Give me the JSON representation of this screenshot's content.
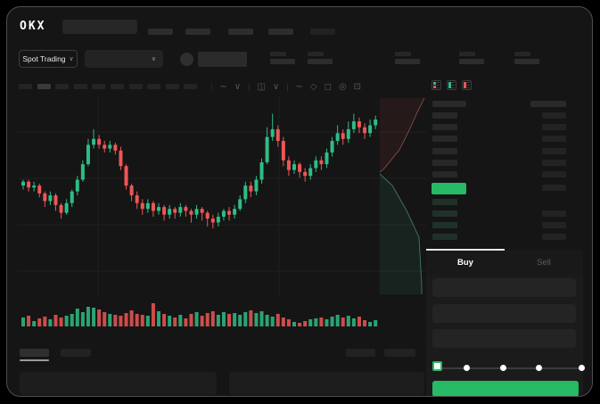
{
  "colors": {
    "candle_green": "#2ebd85",
    "candle_red": "#ef5656",
    "accent_green": "#26ba64",
    "bid_row_tint": "#20312a",
    "ask_row_gray": "#282828",
    "grid": "#1f1f1f"
  },
  "topbar": {
    "logo": "OKX"
  },
  "market_bar": {
    "pair_selector": "Spot Trading",
    "chevron": "∨"
  },
  "chart_toolbar": {
    "timeframe_slots": 10,
    "active_slot": 1,
    "icons": [
      {
        "name": "separator",
        "glyph": "|"
      },
      {
        "name": "indicators-icon",
        "glyph": "∼"
      },
      {
        "name": "chevron-down-icon",
        "glyph": "∨"
      },
      {
        "name": "separator",
        "glyph": "|"
      },
      {
        "name": "chart-type-icon",
        "glyph": "◫"
      },
      {
        "name": "chevron-down-icon",
        "glyph": "∨"
      },
      {
        "name": "separator",
        "glyph": "|"
      },
      {
        "name": "line-tools-icon",
        "glyph": "∼"
      },
      {
        "name": "compare-icon",
        "glyph": "◇"
      },
      {
        "name": "camera-icon",
        "glyph": "◻"
      },
      {
        "name": "settings-icon",
        "glyph": "◎"
      },
      {
        "name": "fullscreen-icon",
        "glyph": "⊡"
      }
    ]
  },
  "chart_data": {
    "type": "candlestick+volume",
    "title": "",
    "note": "values in relative price scale 0-100 read from pixels; candle = [open, close, low, high]",
    "grid": true,
    "candles": [
      [
        55,
        57,
        53,
        58
      ],
      [
        57,
        54,
        52,
        58
      ],
      [
        54,
        55,
        52,
        57
      ],
      [
        55,
        51,
        49,
        56
      ],
      [
        51,
        47,
        44,
        52
      ],
      [
        47,
        50,
        45,
        52
      ],
      [
        50,
        45,
        42,
        51
      ],
      [
        45,
        41,
        38,
        46
      ],
      [
        41,
        46,
        40,
        48
      ],
      [
        46,
        52,
        44,
        53
      ],
      [
        52,
        58,
        50,
        60
      ],
      [
        58,
        66,
        57,
        68
      ],
      [
        66,
        76,
        65,
        79
      ],
      [
        76,
        79,
        74,
        84
      ],
      [
        79,
        76,
        74,
        81
      ],
      [
        76,
        74,
        72,
        78
      ],
      [
        74,
        76,
        72,
        78
      ],
      [
        76,
        73,
        71,
        77
      ],
      [
        73,
        65,
        63,
        75
      ],
      [
        65,
        55,
        53,
        66
      ],
      [
        55,
        50,
        47,
        56
      ],
      [
        50,
        46,
        43,
        52
      ],
      [
        46,
        43,
        40,
        48
      ],
      [
        43,
        46,
        41,
        48
      ],
      [
        46,
        42,
        39,
        47
      ],
      [
        42,
        44,
        40,
        46
      ],
      [
        44,
        40,
        37,
        45
      ],
      [
        40,
        43,
        38,
        45
      ],
      [
        43,
        41,
        38,
        44
      ],
      [
        41,
        44,
        39,
        46
      ],
      [
        44,
        42,
        39,
        45
      ],
      [
        42,
        40,
        36,
        43
      ],
      [
        40,
        43,
        38,
        45
      ],
      [
        43,
        41,
        37,
        44
      ],
      [
        41,
        38,
        34,
        42
      ],
      [
        38,
        36,
        33,
        40
      ],
      [
        36,
        39,
        34,
        41
      ],
      [
        39,
        42,
        37,
        43
      ],
      [
        42,
        40,
        37,
        44
      ],
      [
        40,
        43,
        38,
        45
      ],
      [
        43,
        48,
        42,
        50
      ],
      [
        48,
        55,
        46,
        57
      ],
      [
        55,
        52,
        49,
        57
      ],
      [
        52,
        58,
        50,
        60
      ],
      [
        58,
        67,
        56,
        69
      ],
      [
        67,
        80,
        66,
        85
      ],
      [
        80,
        84,
        78,
        92
      ],
      [
        84,
        78,
        75,
        86
      ],
      [
        78,
        68,
        65,
        80
      ],
      [
        68,
        63,
        60,
        70
      ],
      [
        63,
        66,
        61,
        68
      ],
      [
        66,
        62,
        59,
        67
      ],
      [
        62,
        60,
        57,
        64
      ],
      [
        60,
        64,
        58,
        66
      ],
      [
        64,
        68,
        62,
        70
      ],
      [
        68,
        66,
        63,
        70
      ],
      [
        66,
        72,
        64,
        74
      ],
      [
        72,
        78,
        70,
        80
      ],
      [
        78,
        82,
        76,
        86
      ],
      [
        82,
        79,
        76,
        84
      ],
      [
        79,
        84,
        77,
        88
      ],
      [
        84,
        88,
        82,
        92
      ],
      [
        88,
        85,
        82,
        90
      ],
      [
        85,
        82,
        79,
        87
      ],
      [
        82,
        86,
        80,
        89
      ],
      [
        86,
        89,
        84,
        91
      ]
    ],
    "volumes": [
      10,
      12,
      6,
      9,
      11,
      8,
      13,
      10,
      12,
      14,
      20,
      16,
      22,
      21,
      19,
      16,
      14,
      13,
      12,
      15,
      18,
      14,
      13,
      12,
      26,
      17,
      14,
      12,
      10,
      13,
      9,
      14,
      16,
      12,
      15,
      17,
      13,
      16,
      14,
      15,
      13,
      16,
      18,
      15,
      17,
      13,
      11,
      14,
      10,
      8,
      5,
      4,
      6,
      8,
      9,
      10,
      8,
      11,
      13,
      10,
      12,
      9,
      11,
      7,
      5,
      7
    ],
    "depth_overlay": {
      "asks_fill": "rgba(190,70,70,0.10)",
      "asks_line": "#7a4545",
      "bids_fill": "rgba(46,142,110,0.12)",
      "bids_line": "#3f6e62"
    }
  },
  "order_book": {
    "view_icons": [
      {
        "name": "book-view-both-icon"
      },
      {
        "name": "book-view-bids-icon"
      },
      {
        "name": "book-view-asks-icon"
      }
    ],
    "ask_rows": [
      {
        "right": true
      },
      {
        "right": true
      },
      {
        "right": true
      },
      {
        "right": true
      },
      {
        "right": true
      },
      {
        "right": true
      }
    ],
    "price_row": {
      "highlight": true,
      "right": true
    },
    "bid_rows": [
      {
        "right": false
      },
      {
        "right": true
      },
      {
        "right": true
      },
      {
        "right": true
      }
    ]
  },
  "trade_panel": {
    "tabs": [
      {
        "label": "Buy",
        "active": true
      },
      {
        "label": "Sell",
        "active": false
      }
    ],
    "input_count": 3,
    "input_tops": [
      304,
      333,
      361
    ],
    "slider": {
      "stop_centers": [
        482,
        515,
        556,
        596,
        644
      ],
      "value_index": 0
    },
    "submit_label": ""
  }
}
